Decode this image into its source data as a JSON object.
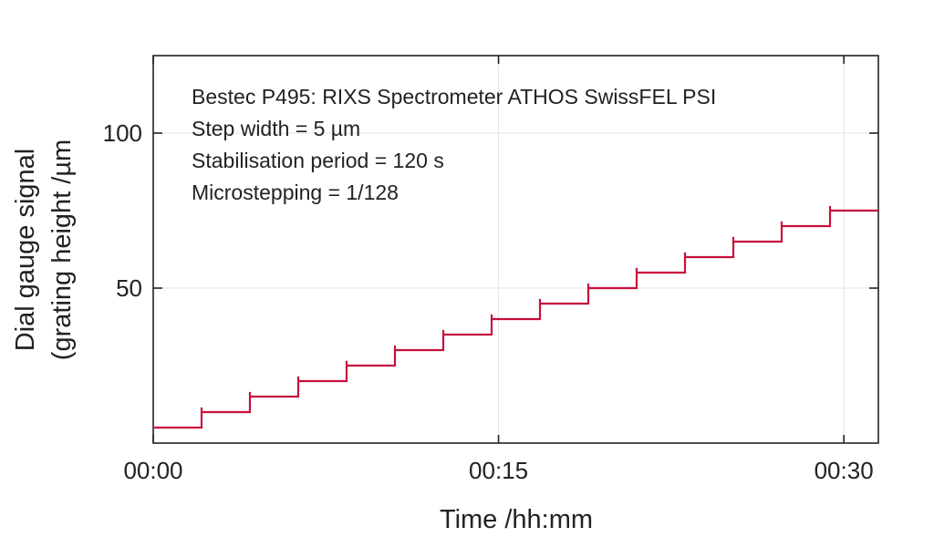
{
  "chart_data": {
    "type": "line",
    "title": "",
    "annotations": [
      "Bestec P495: RIXS Spectrometer ATHOS SwissFEL PSI",
      "Step width = 5 µm",
      "Stabilisation period = 120 s",
      "Microstepping = 1/128"
    ],
    "xlabel": "Time /hh:mm",
    "ylabel_line1": "Dial gauge signal",
    "ylabel_line2": "(grating height /µm",
    "x_unit": "minutes",
    "xlim": [
      0,
      31.5
    ],
    "ylim": [
      0,
      125
    ],
    "x_ticks": [
      {
        "value": 0,
        "label": "00:00"
      },
      {
        "value": 15,
        "label": "00:15"
      },
      {
        "value": 30,
        "label": "00:30"
      }
    ],
    "y_ticks": [
      {
        "value": 50,
        "label": "50"
      },
      {
        "value": 100,
        "label": "100"
      }
    ],
    "grid": true,
    "line_color": "#c8103c",
    "series": [
      {
        "step_times_min": [
          0,
          2.1,
          4.2,
          6.3,
          8.4,
          10.5,
          12.6,
          14.7,
          16.8,
          18.9,
          21.0,
          23.1,
          25.2,
          27.3,
          29.4
        ],
        "levels": [
          5,
          10,
          15,
          20,
          25,
          30,
          35,
          40,
          45,
          50,
          55,
          60,
          65,
          70,
          75
        ],
        "step_overshoot": 1.5
      }
    ]
  }
}
